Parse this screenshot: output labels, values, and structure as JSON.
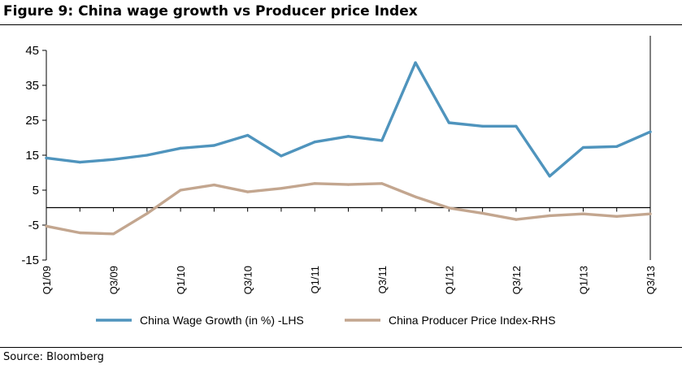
{
  "figure": {
    "title": "Figure 9: China wage growth vs Producer price Index",
    "source": "Source:  Bloomberg"
  },
  "colors": {
    "wage": "#4f94bd",
    "ppi": "#c3a68f",
    "axis": "#000000"
  },
  "chart_data": {
    "type": "line",
    "title": "Figure 9: China wage growth vs Producer price Index",
    "xlabel": "",
    "ylabel": "",
    "ylim": [
      -15,
      45
    ],
    "yticks": [
      45,
      35,
      25,
      15,
      5,
      -5,
      -15
    ],
    "grid": false,
    "legend_position": "bottom",
    "x": [
      "Q1/09",
      "Q2/09",
      "Q3/09",
      "Q4/09",
      "Q1/10",
      "Q2/10",
      "Q3/10",
      "Q4/10",
      "Q1/11",
      "Q2/11",
      "Q3/11",
      "Q4/11",
      "Q1/12",
      "Q2/12",
      "Q3/12",
      "Q4/12",
      "Q1/13",
      "Q2/13",
      "Q3/13"
    ],
    "x_tick_labels": [
      "Q1/09",
      "Q3/09",
      "Q1/10",
      "Q3/10",
      "Q1/11",
      "Q3/11",
      "Q1/12",
      "Q3/12",
      "Q1/13",
      "Q3/13"
    ],
    "series": [
      {
        "name": "China Wage Growth (in %) -LHS",
        "values": [
          14.2,
          13.0,
          13.8,
          15.0,
          17.0,
          17.8,
          20.7,
          14.8,
          18.8,
          20.4,
          19.2,
          41.5,
          24.3,
          23.3,
          23.3,
          9.0,
          17.2,
          17.5,
          21.7
        ]
      },
      {
        "name": "China Producer Price Index-RHS",
        "values": [
          -5.3,
          -7.2,
          -7.5,
          -1.7,
          5.0,
          6.5,
          4.5,
          5.5,
          6.9,
          6.6,
          6.9,
          3.1,
          -0.1,
          -1.6,
          -3.4,
          -2.3,
          -1.8,
          -2.5,
          -1.8
        ]
      }
    ]
  }
}
